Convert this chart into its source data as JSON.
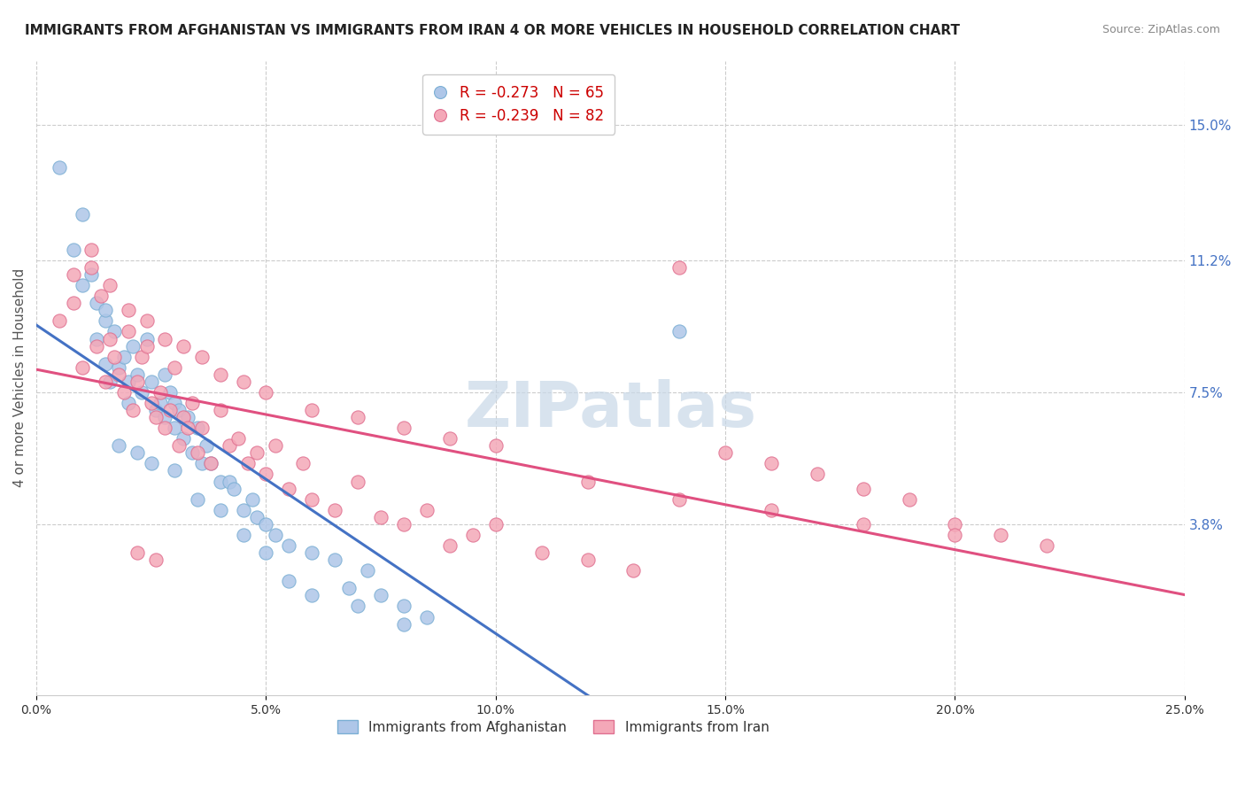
{
  "title": "IMMIGRANTS FROM AFGHANISTAN VS IMMIGRANTS FROM IRAN 4 OR MORE VEHICLES IN HOUSEHOLD CORRELATION CHART",
  "source": "Source: ZipAtlas.com",
  "ylabel": "4 or more Vehicles in Household",
  "ytick_labels": [
    "15.0%",
    "11.2%",
    "7.5%",
    "3.8%"
  ],
  "ytick_values": [
    0.15,
    0.112,
    0.075,
    0.038
  ],
  "xlim": [
    0.0,
    0.25
  ],
  "ylim": [
    -0.01,
    0.168
  ],
  "top_legend_label1": "R = -0.273   N = 65",
  "top_legend_label2": "R = -0.239   N = 82",
  "bottom_legend_label1": "Immigrants from Afghanistan",
  "bottom_legend_label2": "Immigrants from Iran",
  "series1_color": "#aec6e8",
  "series1_edge": "#7bafd4",
  "series2_color": "#f4a8b8",
  "series2_edge": "#e07090",
  "line1_color": "#4472c4",
  "line2_color": "#e05080",
  "line1_dash_color": "#aabbdd",
  "watermark": "ZIPatlas",
  "watermark_color": "#c8d8e8",
  "grid_color": "#cccccc",
  "background_color": "#ffffff",
  "afghanistan_x": [
    0.005,
    0.008,
    0.01,
    0.012,
    0.013,
    0.013,
    0.015,
    0.015,
    0.016,
    0.017,
    0.018,
    0.019,
    0.02,
    0.02,
    0.021,
    0.022,
    0.023,
    0.024,
    0.025,
    0.026,
    0.027,
    0.028,
    0.028,
    0.029,
    0.03,
    0.03,
    0.031,
    0.032,
    0.033,
    0.034,
    0.035,
    0.036,
    0.037,
    0.038,
    0.04,
    0.042,
    0.043,
    0.045,
    0.047,
    0.048,
    0.05,
    0.052,
    0.055,
    0.06,
    0.065,
    0.068,
    0.072,
    0.075,
    0.08,
    0.085,
    0.01,
    0.015,
    0.018,
    0.022,
    0.025,
    0.03,
    0.035,
    0.04,
    0.045,
    0.05,
    0.055,
    0.06,
    0.07,
    0.08,
    0.14
  ],
  "afghanistan_y": [
    0.138,
    0.115,
    0.125,
    0.108,
    0.09,
    0.1,
    0.095,
    0.083,
    0.078,
    0.092,
    0.082,
    0.085,
    0.078,
    0.072,
    0.088,
    0.08,
    0.075,
    0.09,
    0.078,
    0.07,
    0.072,
    0.068,
    0.08,
    0.075,
    0.065,
    0.072,
    0.07,
    0.062,
    0.068,
    0.058,
    0.065,
    0.055,
    0.06,
    0.055,
    0.05,
    0.05,
    0.048,
    0.042,
    0.045,
    0.04,
    0.038,
    0.035,
    0.032,
    0.03,
    0.028,
    0.02,
    0.025,
    0.018,
    0.015,
    0.012,
    0.105,
    0.098,
    0.06,
    0.058,
    0.055,
    0.053,
    0.045,
    0.042,
    0.035,
    0.03,
    0.022,
    0.018,
    0.015,
    0.01,
    0.092
  ],
  "iran_x": [
    0.005,
    0.008,
    0.01,
    0.012,
    0.013,
    0.014,
    0.015,
    0.016,
    0.017,
    0.018,
    0.019,
    0.02,
    0.021,
    0.022,
    0.023,
    0.024,
    0.025,
    0.026,
    0.027,
    0.028,
    0.029,
    0.03,
    0.031,
    0.032,
    0.033,
    0.034,
    0.035,
    0.036,
    0.038,
    0.04,
    0.042,
    0.044,
    0.046,
    0.048,
    0.05,
    0.052,
    0.055,
    0.058,
    0.06,
    0.065,
    0.07,
    0.075,
    0.08,
    0.085,
    0.09,
    0.095,
    0.1,
    0.11,
    0.12,
    0.13,
    0.14,
    0.15,
    0.16,
    0.17,
    0.18,
    0.19,
    0.2,
    0.21,
    0.22,
    0.008,
    0.012,
    0.016,
    0.02,
    0.024,
    0.028,
    0.032,
    0.036,
    0.04,
    0.045,
    0.05,
    0.06,
    0.07,
    0.08,
    0.09,
    0.1,
    0.12,
    0.14,
    0.16,
    0.18,
    0.2,
    0.022,
    0.026
  ],
  "iran_y": [
    0.095,
    0.1,
    0.082,
    0.115,
    0.088,
    0.102,
    0.078,
    0.09,
    0.085,
    0.08,
    0.075,
    0.092,
    0.07,
    0.078,
    0.085,
    0.088,
    0.072,
    0.068,
    0.075,
    0.065,
    0.07,
    0.082,
    0.06,
    0.068,
    0.065,
    0.072,
    0.058,
    0.065,
    0.055,
    0.07,
    0.06,
    0.062,
    0.055,
    0.058,
    0.052,
    0.06,
    0.048,
    0.055,
    0.045,
    0.042,
    0.05,
    0.04,
    0.038,
    0.042,
    0.032,
    0.035,
    0.038,
    0.03,
    0.028,
    0.025,
    0.11,
    0.058,
    0.055,
    0.052,
    0.048,
    0.045,
    0.038,
    0.035,
    0.032,
    0.108,
    0.11,
    0.105,
    0.098,
    0.095,
    0.09,
    0.088,
    0.085,
    0.08,
    0.078,
    0.075,
    0.07,
    0.068,
    0.065,
    0.062,
    0.06,
    0.05,
    0.045,
    0.042,
    0.038,
    0.035,
    0.03,
    0.028
  ]
}
